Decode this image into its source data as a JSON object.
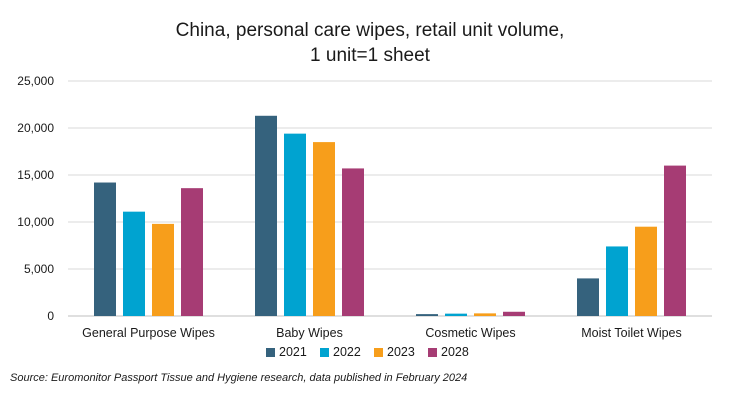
{
  "chart_data": {
    "type": "bar",
    "title_lines": [
      "China, personal care wipes, retail unit volume,",
      "1 unit=1 sheet"
    ],
    "categories": [
      "General Purpose Wipes",
      "Baby Wipes",
      "Cosmetic Wipes",
      "Moist Toilet Wipes"
    ],
    "series": [
      {
        "name": "2021",
        "color": "#35627d",
        "values": [
          14200,
          21300,
          200,
          4000
        ]
      },
      {
        "name": "2022",
        "color": "#00a3d0",
        "values": [
          11100,
          19400,
          250,
          7400
        ]
      },
      {
        "name": "2023",
        "color": "#f79e1b",
        "values": [
          9800,
          18500,
          280,
          9500
        ]
      },
      {
        "name": "2028",
        "color": "#a63c74",
        "values": [
          13600,
          15700,
          450,
          16000
        ]
      }
    ],
    "ylim": [
      0,
      25000
    ],
    "yticks": [
      "0",
      "5,000",
      "10,000",
      "15,000",
      "20,000",
      "25,000"
    ],
    "ytick_values": [
      0,
      5000,
      10000,
      15000,
      20000,
      25000
    ],
    "grid": true,
    "legend_position": "bottom"
  },
  "source": "Source: Euromonitor Passport Tissue and Hygiene research, data published in February 2024"
}
